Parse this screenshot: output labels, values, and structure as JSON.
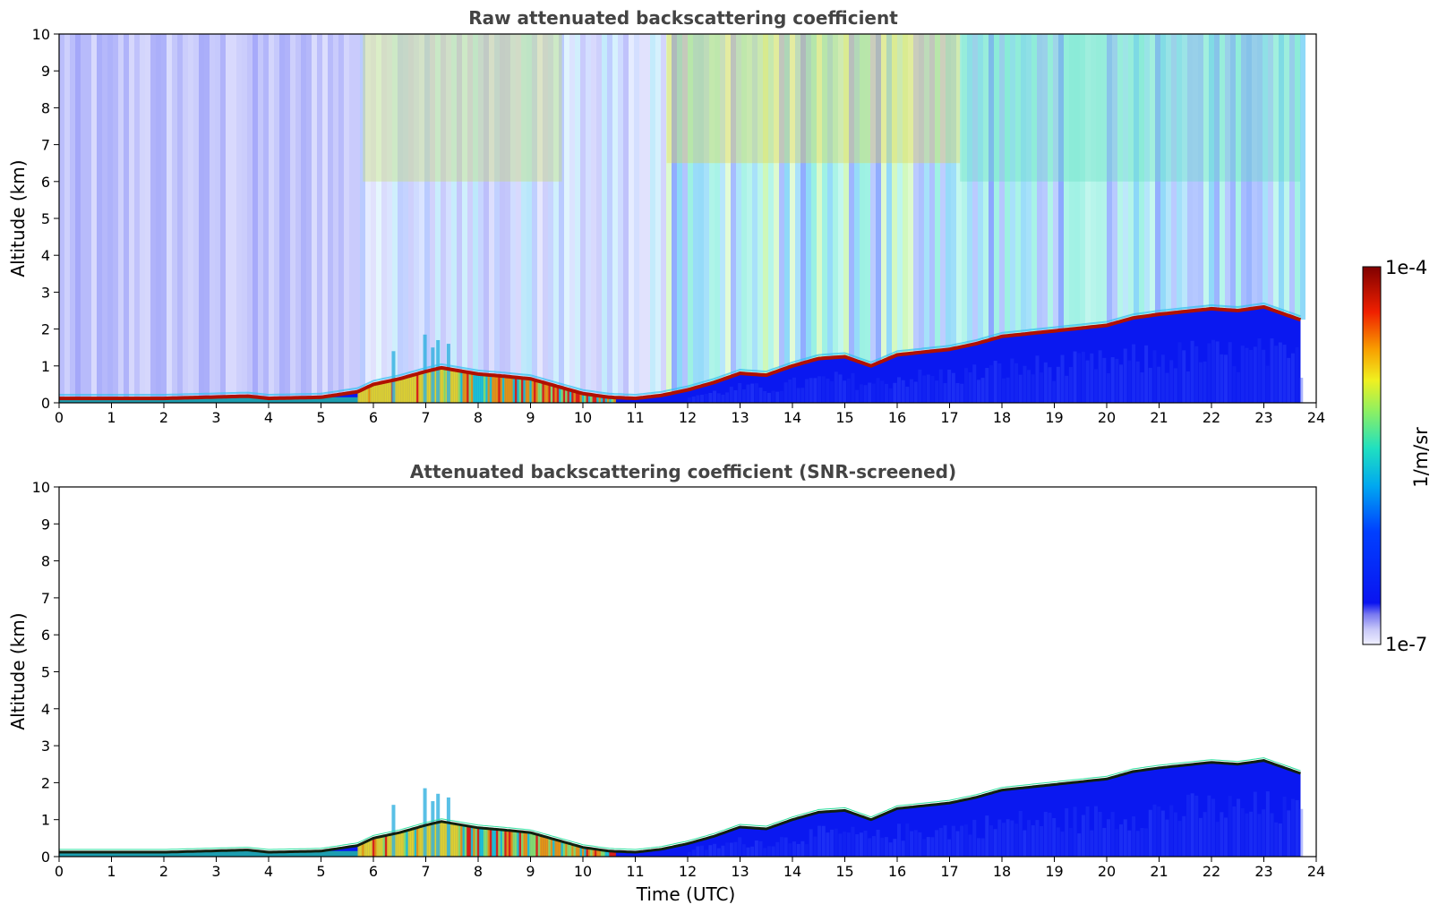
{
  "chart_data": [
    {
      "type": "heatmap",
      "title": "Raw attenuated backscattering coefficient",
      "xlabel": "",
      "ylabel": "Altitude (km)",
      "xlim": [
        0,
        24
      ],
      "ylim": [
        0,
        10
      ],
      "x_ticks": [
        "0",
        "1",
        "2",
        "3",
        "4",
        "5",
        "6",
        "7",
        "8",
        "9",
        "10",
        "11",
        "12",
        "13",
        "14",
        "15",
        "16",
        "17",
        "18",
        "19",
        "20",
        "21",
        "22",
        "23",
        "24"
      ],
      "y_ticks": [
        "0",
        "1",
        "2",
        "3",
        "4",
        "5",
        "6",
        "7",
        "8",
        "9",
        "10"
      ],
      "data_end_time": 23.7,
      "layer_top_km": [
        [
          0,
          0.12
        ],
        [
          2,
          0.12
        ],
        [
          3.6,
          0.18
        ],
        [
          4,
          0.12
        ],
        [
          5,
          0.15
        ],
        [
          5.7,
          0.3
        ],
        [
          6,
          0.5
        ],
        [
          6.5,
          0.65
        ],
        [
          7,
          0.85
        ],
        [
          7.3,
          0.95
        ],
        [
          8,
          0.78
        ],
        [
          8.5,
          0.72
        ],
        [
          9,
          0.65
        ],
        [
          9.5,
          0.45
        ],
        [
          10,
          0.25
        ],
        [
          10.5,
          0.15
        ],
        [
          11,
          0.12
        ],
        [
          11.5,
          0.2
        ],
        [
          12,
          0.35
        ],
        [
          12.5,
          0.55
        ],
        [
          13,
          0.8
        ],
        [
          13.5,
          0.75
        ],
        [
          14,
          1.0
        ],
        [
          14.5,
          1.2
        ],
        [
          15,
          1.25
        ],
        [
          15.5,
          1.0
        ],
        [
          16,
          1.3
        ],
        [
          17,
          1.45
        ],
        [
          17.5,
          1.6
        ],
        [
          18,
          1.8
        ],
        [
          19,
          1.95
        ],
        [
          20,
          2.1
        ],
        [
          20.5,
          2.3
        ],
        [
          21,
          2.4
        ],
        [
          22,
          2.55
        ],
        [
          22.5,
          2.5
        ],
        [
          23,
          2.6
        ],
        [
          23.7,
          2.25
        ]
      ],
      "annotations": [
        "noisy above-layer signal, high values 5.7–11.5 UTC and 11.5–17.2 UTC in upper levels",
        "aerosol plumes up to ~1.8 km near 7 UTC"
      ]
    },
    {
      "type": "heatmap",
      "title": "Attenuated backscattering coefficient (SNR-screened)",
      "xlabel": "Time (UTC)",
      "ylabel": "Altitude (km)",
      "xlim": [
        0,
        24
      ],
      "ylim": [
        0,
        10
      ],
      "x_ticks": [
        "0",
        "1",
        "2",
        "3",
        "4",
        "5",
        "6",
        "7",
        "8",
        "9",
        "10",
        "11",
        "12",
        "13",
        "14",
        "15",
        "16",
        "17",
        "18",
        "19",
        "20",
        "21",
        "22",
        "23",
        "24"
      ],
      "y_ticks": [
        "0",
        "1",
        "2",
        "3",
        "4",
        "5",
        "6",
        "7",
        "8",
        "9",
        "10"
      ],
      "data_end_time": 23.7,
      "layer_top_km": [
        [
          0,
          0.12
        ],
        [
          2,
          0.12
        ],
        [
          3.6,
          0.18
        ],
        [
          4,
          0.12
        ],
        [
          5,
          0.15
        ],
        [
          5.7,
          0.3
        ],
        [
          6,
          0.5
        ],
        [
          6.5,
          0.65
        ],
        [
          7,
          0.85
        ],
        [
          7.3,
          0.95
        ],
        [
          8,
          0.78
        ],
        [
          8.5,
          0.72
        ],
        [
          9,
          0.65
        ],
        [
          9.5,
          0.45
        ],
        [
          10,
          0.25
        ],
        [
          10.5,
          0.15
        ],
        [
          11,
          0.12
        ],
        [
          11.5,
          0.2
        ],
        [
          12,
          0.35
        ],
        [
          12.5,
          0.55
        ],
        [
          13,
          0.8
        ],
        [
          13.5,
          0.75
        ],
        [
          14,
          1.0
        ],
        [
          14.5,
          1.2
        ],
        [
          15,
          1.25
        ],
        [
          15.5,
          1.0
        ],
        [
          16,
          1.3
        ],
        [
          17,
          1.45
        ],
        [
          17.5,
          1.6
        ],
        [
          18,
          1.8
        ],
        [
          19,
          1.95
        ],
        [
          20,
          2.1
        ],
        [
          20.5,
          2.3
        ],
        [
          21,
          2.4
        ],
        [
          22,
          2.55
        ],
        [
          22.5,
          2.5
        ],
        [
          23,
          2.6
        ],
        [
          23.7,
          2.25
        ]
      ]
    }
  ],
  "colorbar": {
    "max_label": "1e-4",
    "min_label": "1e-7",
    "unit_label": "1/m/sr",
    "colormap": "jet-like, white/lavender at low end to dark red at high end"
  },
  "colors": {
    "title": "#444444",
    "low": "#0a14f0",
    "high": "#8b0000"
  }
}
